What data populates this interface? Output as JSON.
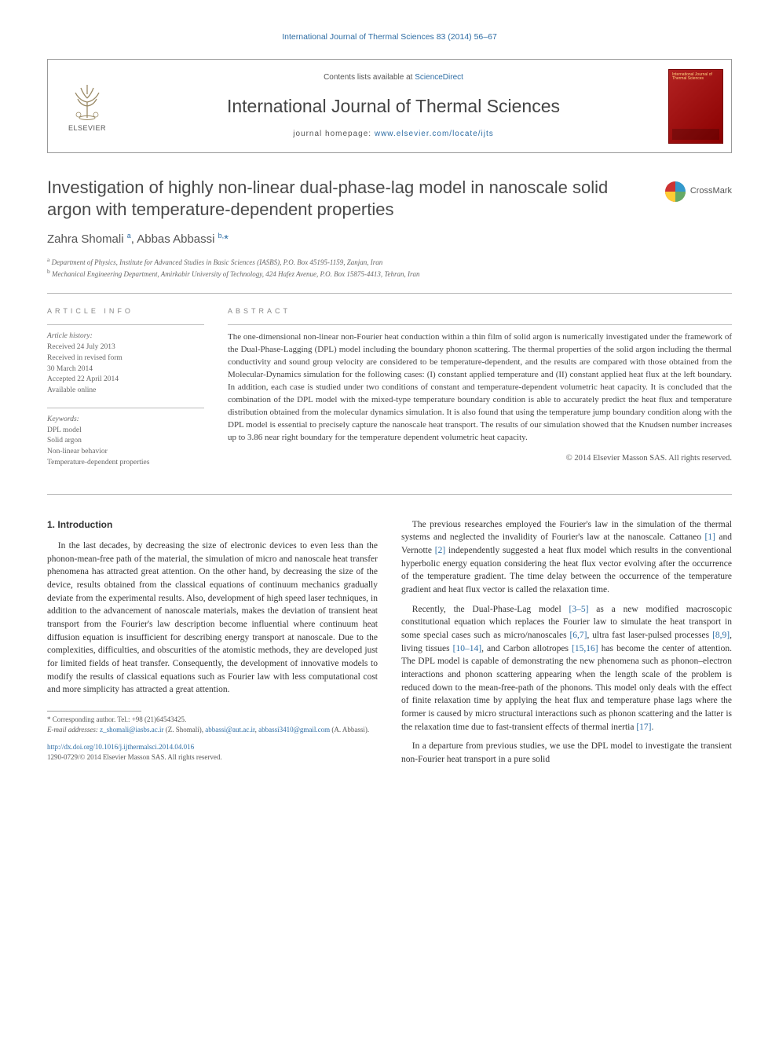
{
  "citation": "International Journal of Thermal Sciences 83 (2014) 56–67",
  "header": {
    "publisher": "ELSEVIER",
    "contents_prefix": "Contents lists available at ",
    "contents_link": "ScienceDirect",
    "journal_name": "International Journal of Thermal Sciences",
    "homepage_prefix": "journal homepage: ",
    "homepage_url": "www.elsevier.com/locate/ijts",
    "cover_label": "International Journal of Thermal Sciences"
  },
  "crossmark_label": "CrossMark",
  "article": {
    "title": "Investigation of highly non-linear dual-phase-lag model in nanoscale solid argon with temperature-dependent properties",
    "authors_html": "Zahra Shomali <sup>a</sup>, Abbas Abbassi <sup>b,</sup><span class='star'>*</span>",
    "affiliations": [
      {
        "sup": "a",
        "text": "Department of Physics, Institute for Advanced Studies in Basic Sciences (IASBS), P.O. Box 45195-1159, Zanjan, Iran"
      },
      {
        "sup": "b",
        "text": "Mechanical Engineering Department, Amirkabir University of Technology, 424 Hafez Avenue, P.O. Box 15875-4413, Tehran, Iran"
      }
    ]
  },
  "info": {
    "heading": "ARTICLE INFO",
    "history_label": "Article history:",
    "history_lines": [
      "Received 24 July 2013",
      "Received in revised form",
      "30 March 2014",
      "Accepted 22 April 2014",
      "Available online"
    ],
    "keywords_label": "Keywords:",
    "keywords": [
      "DPL model",
      "Solid argon",
      "Non-linear behavior",
      "Temperature-dependent properties"
    ]
  },
  "abstract": {
    "heading": "ABSTRACT",
    "text": "The one-dimensional non-linear non-Fourier heat conduction within a thin film of solid argon is numerically investigated under the framework of the Dual-Phase-Lagging (DPL) model including the boundary phonon scattering. The thermal properties of the solid argon including the thermal conductivity and sound group velocity are considered to be temperature-dependent, and the results are compared with those obtained from the Molecular-Dynamics simulation for the following cases: (I) constant applied temperature and (II) constant applied heat flux at the left boundary. In addition, each case is studied under two conditions of constant and temperature-dependent volumetric heat capacity. It is concluded that the combination of the DPL model with the mixed-type temperature boundary condition is able to accurately predict the heat flux and temperature distribution obtained from the molecular dynamics simulation. It is also found that using the temperature jump boundary condition along with the DPL model is essential to precisely capture the nanoscale heat transport. The results of our simulation showed that the Knudsen number increases up to 3.86 near right boundary for the temperature dependent volumetric heat capacity.",
    "copyright": "© 2014 Elsevier Masson SAS. All rights reserved."
  },
  "body": {
    "section_number": "1.",
    "section_title": "Introduction",
    "p1": "In the last decades, by decreasing the size of electronic devices to even less than the phonon-mean-free path of the material, the simulation of micro and nanoscale heat transfer phenomena has attracted great attention. On the other hand, by decreasing the size of the device, results obtained from the classical equations of continuum mechanics gradually deviate from the experimental results. Also, development of high speed laser techniques, in addition to the advancement of nanoscale materials, makes the deviation of transient heat transport from the Fourier's law description become influential where continuum heat diffusion equation is insufficient for describing energy transport at nanoscale. Due to the complexities, difficulties, and obscurities of the atomistic methods, they are developed just for limited fields of heat transfer. Consequently, the development of innovative models to modify the results of classical equations such as Fourier law with less computational cost and more simplicity has attracted a great attention.",
    "p2_pre": "The previous researches employed the Fourier's law in the simulation of the thermal systems and neglected the invalidity of Fourier's law at the nanoscale. Cattaneo ",
    "p2_ref1": "[1]",
    "p2_mid1": " and Vernotte ",
    "p2_ref2": "[2]",
    "p2_post": " independently suggested a heat flux model which results in the conventional hyperbolic energy equation considering the heat flux vector evolving after the occurrence of the temperature gradient. The time delay between the occurrence of the temperature gradient and heat flux vector is called the relaxation time.",
    "p3_pre": "Recently, the Dual-Phase-Lag model ",
    "p3_ref1": "[3–5]",
    "p3_mid1": " as a new modified macroscopic constitutional equation which replaces the Fourier law to simulate the heat transport in some special cases such as micro/nanoscales ",
    "p3_ref2": "[6,7]",
    "p3_mid2": ", ultra fast laser-pulsed processes ",
    "p3_ref3": "[8,9]",
    "p3_mid3": ", living tissues ",
    "p3_ref4": "[10–14]",
    "p3_mid4": ", and Carbon allotropes ",
    "p3_ref5": "[15,16]",
    "p3_mid5": " has become the center of attention. The DPL model is capable of demonstrating the new phenomena such as phonon–electron interactions and phonon scattering appearing when the length scale of the problem is reduced down to the mean-free-path of the phonons. This model only deals with the effect of finite relaxation time by applying the heat flux and temperature phase lags where the former is caused by micro structural interactions such as phonon scattering and the latter is the relaxation time due to fast-transient effects of thermal inertia ",
    "p3_ref6": "[17]",
    "p3_end": ".",
    "p4": "In a departure from previous studies, we use the DPL model to investigate the transient non-Fourier heat transport in a pure solid"
  },
  "footnotes": {
    "corr": "* Corresponding author. Tel.: +98 (21)64543425.",
    "email_label": "E-mail addresses:",
    "email1": "z_shomali@iasbs.ac.ir",
    "email1_owner": " (Z. Shomali), ",
    "email2": "abbassi@aut.ac.ir",
    "sep": ", ",
    "email3": "abbassi3410@gmail.com",
    "email3_owner": " (A. Abbassi)."
  },
  "footer": {
    "doi": "http://dx.doi.org/10.1016/j.ijthermalsci.2014.04.016",
    "issn_line": "1290-0729/© 2014 Elsevier Masson SAS. All rights reserved."
  },
  "colors": {
    "link": "#2e6da4",
    "text": "#333333",
    "muted": "#666666",
    "cover_bg1": "#b22222",
    "cover_bg2": "#8b0000"
  }
}
